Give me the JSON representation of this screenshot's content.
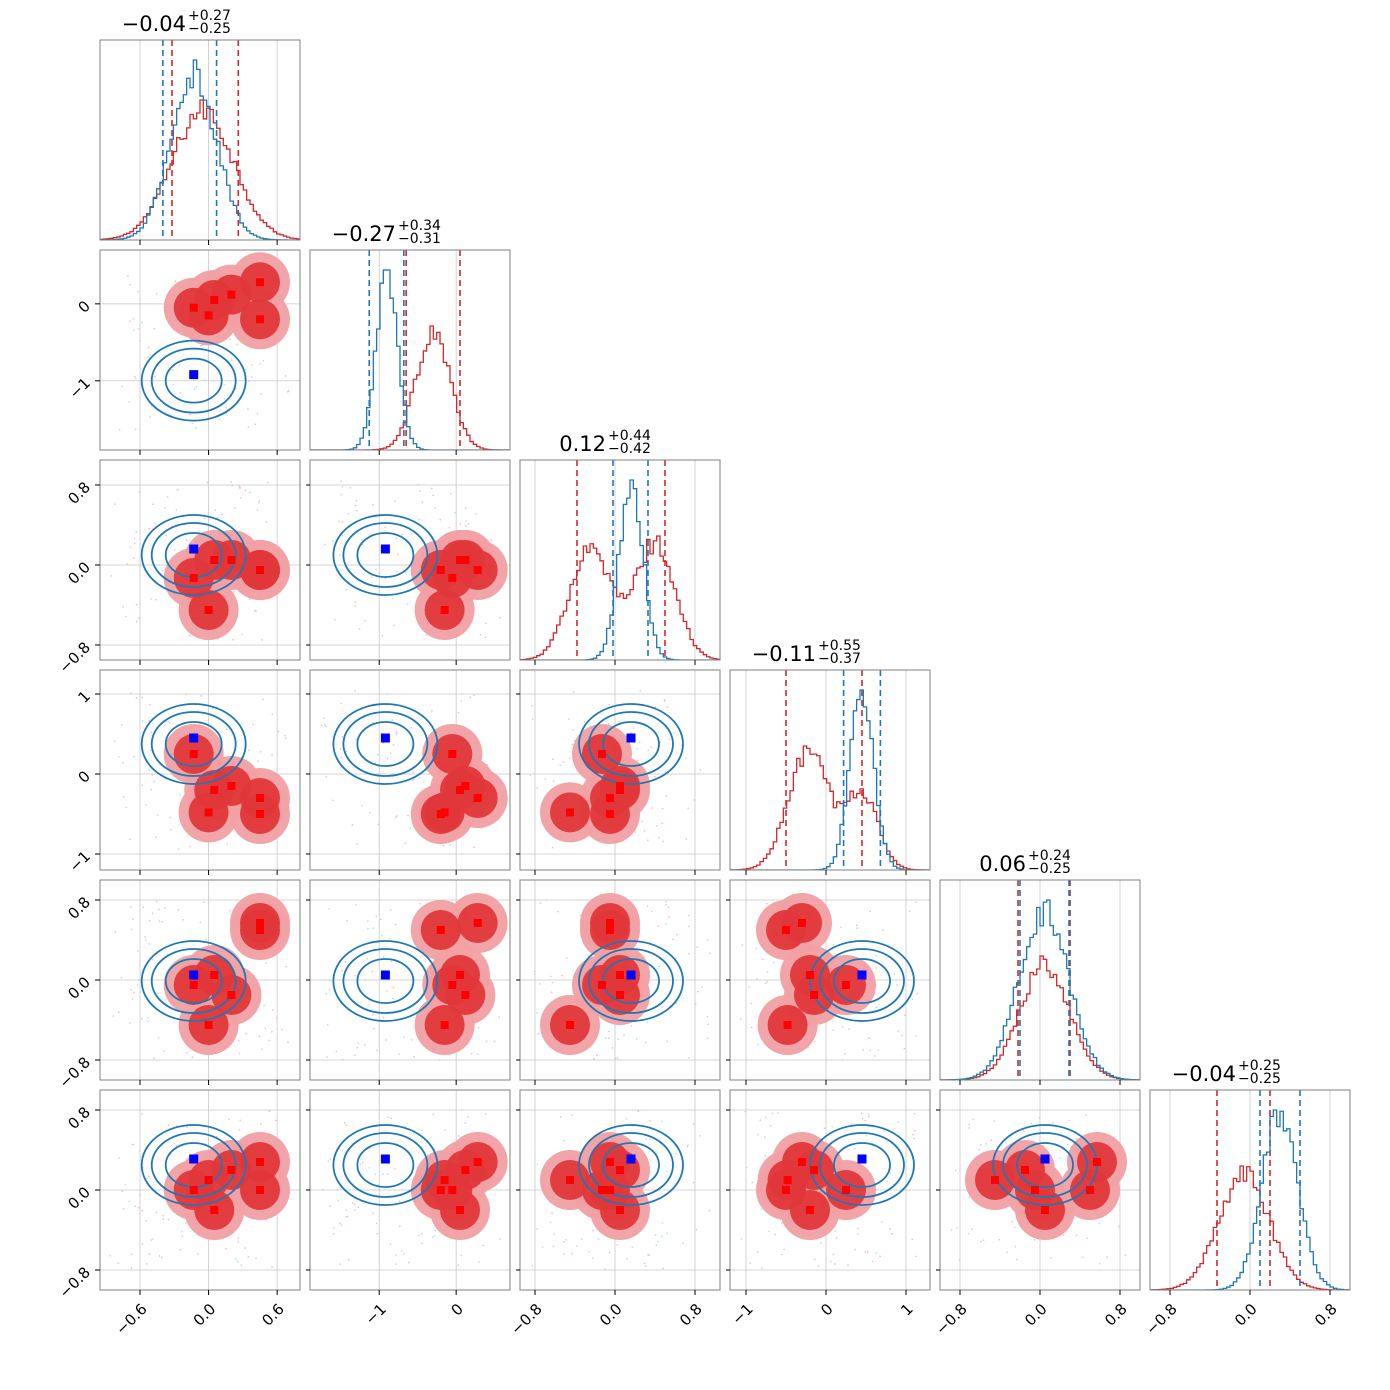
{
  "colors": {
    "red": "#d62728",
    "red_light": "#f1a0a3",
    "red_dark": "#e0373a",
    "blue": "#1f77b4",
    "marker_red": "#ff0000",
    "marker_blue": "#0000ff",
    "grid": "#c8c8c8",
    "frame": "#808080"
  },
  "chart_data": {
    "type": "corner",
    "n_params": 6,
    "grid": true,
    "series": [
      {
        "name": "",
        "color": "#d62728",
        "style": "filled contours + step histogram"
      },
      {
        "name": "",
        "color": "#1f77b4",
        "style": "line contours + step histogram"
      }
    ],
    "titles": [
      {
        "value": "−0.04",
        "plus": "+0.27",
        "minus": "−0.25"
      },
      {
        "value": "−0.27",
        "plus": "+0.34",
        "minus": "−0.31"
      },
      {
        "value": "0.12",
        "plus": "+0.44",
        "minus": "−0.42"
      },
      {
        "value": "−0.11",
        "plus": "+0.55",
        "minus": "−0.37"
      },
      {
        "value": "0.06",
        "plus": "+0.24",
        "minus": "−0.25"
      },
      {
        "value": "−0.04",
        "plus": "+0.25",
        "minus": "−0.25"
      }
    ],
    "params": [
      {
        "range": [
          -0.95,
          0.8
        ],
        "ticks": [
          -0.6,
          0.0,
          0.6
        ],
        "tick_labels": [
          "−0.6",
          "0.0",
          "0.6"
        ]
      },
      {
        "range": [
          -1.9,
          0.7
        ],
        "ticks": [
          -1,
          0
        ],
        "tick_labels": [
          "−1",
          "0"
        ]
      },
      {
        "range": [
          -0.95,
          1.05
        ],
        "ticks": [
          -0.8,
          0.0,
          0.8
        ],
        "tick_labels": [
          "−0.8",
          "0.0",
          "0.8"
        ]
      },
      {
        "range": [
          -1.2,
          1.3
        ],
        "ticks": [
          -1,
          0,
          1
        ],
        "tick_labels": [
          "−1",
          "0",
          "1"
        ]
      },
      {
        "range": [
          -1.0,
          1.0
        ],
        "ticks": [
          -0.8,
          0.0,
          0.8
        ],
        "tick_labels": [
          "−0.8",
          "0.0",
          "0.8"
        ]
      },
      {
        "range": [
          -1.0,
          1.0
        ],
        "ticks": [
          -0.8,
          0.0,
          0.8
        ],
        "tick_labels": [
          "−0.8",
          "0.0",
          "0.8"
        ]
      }
    ],
    "quantiles": {
      "red": [
        [
          -0.32,
          0.26
        ],
        [
          -0.65,
          0.05
        ],
        [
          -0.38,
          0.5
        ],
        [
          -0.5,
          0.45
        ],
        [
          -0.22,
          0.3
        ],
        [
          -0.33,
          0.2
        ]
      ],
      "blue": [
        [
          -0.4,
          0.07
        ],
        [
          -1.13,
          -0.68
        ],
        [
          -0.02,
          0.33
        ],
        [
          0.22,
          0.68
        ],
        [
          -0.2,
          0.29
        ],
        [
          0.1,
          0.5
        ]
      ]
    },
    "histograms": {
      "red": [
        {
          "center": -0.05,
          "sigma": 0.27
        },
        {
          "components": [
            {
              "mu": -0.3,
              "sigma": 0.22,
              "w": 1.0
            }
          ]
        },
        {
          "components": [
            {
              "mu": -0.25,
              "sigma": 0.2,
              "w": 1.0
            },
            {
              "mu": 0.4,
              "sigma": 0.2,
              "w": 1.0
            }
          ]
        },
        {
          "components": [
            {
              "mu": -0.22,
              "sigma": 0.25,
              "w": 0.85
            },
            {
              "mu": 0.45,
              "sigma": 0.2,
              "w": 0.55
            }
          ]
        },
        {
          "components": [
            {
              "mu": 0.05,
              "sigma": 0.25,
              "w": 1.0
            }
          ]
        },
        {
          "components": [
            {
              "mu": -0.06,
              "sigma": 0.25,
              "w": 1.0
            }
          ]
        }
      ],
      "blue": [
        {
          "center": -0.13,
          "sigma": 0.2
        },
        {
          "components": [
            {
              "mu": -0.9,
              "sigma": 0.14,
              "w": 1.0
            }
          ]
        },
        {
          "components": [
            {
              "mu": 0.16,
              "sigma": 0.12,
              "w": 1.0
            }
          ]
        },
        {
          "components": [
            {
              "mu": 0.45,
              "sigma": 0.15,
              "w": 1.0
            }
          ]
        },
        {
          "components": [
            {
              "mu": 0.04,
              "sigma": 0.25,
              "w": 1.0
            }
          ]
        },
        {
          "components": [
            {
              "mu": 0.3,
              "sigma": 0.18,
              "w": 1.0
            }
          ]
        }
      ]
    },
    "markers": {
      "blue": [
        -0.13,
        -0.92,
        0.16,
        0.45,
        0.05,
        0.31
      ],
      "red": [
        [
          -0.13,
          0.0,
          0.45,
          0.45,
          0.2,
          0.05
        ],
        [
          -0.05,
          -0.15,
          0.28,
          -0.2,
          0.12,
          0.05
        ],
        [
          -0.13,
          -0.45,
          -0.05,
          -0.05,
          0.05,
          0.05
        ],
        [
          0.25,
          -0.48,
          -0.3,
          -0.5,
          -0.15,
          -0.2
        ],
        [
          -0.05,
          -0.45,
          0.57,
          0.5,
          -0.15,
          0.05
        ],
        [
          0.0,
          0.1,
          0.28,
          0.0,
          0.2,
          -0.2
        ]
      ]
    }
  }
}
